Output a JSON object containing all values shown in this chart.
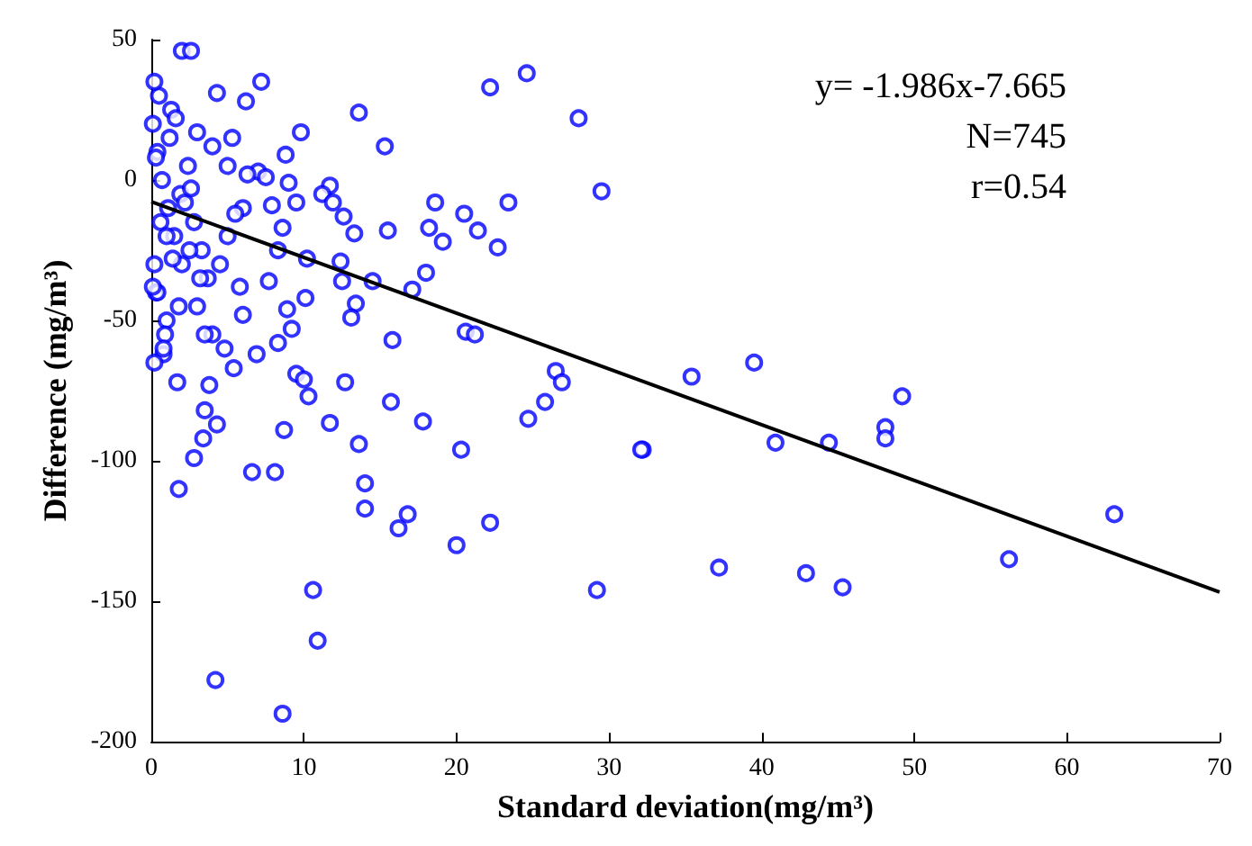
{
  "chart_data": {
    "type": "scatter",
    "xlabel": "Standard deviation(mg/m³)",
    "ylabel": "Difference (mg/m³)",
    "xlim": [
      0,
      70
    ],
    "ylim": [
      -200,
      50
    ],
    "xticks": [
      0,
      10,
      20,
      30,
      40,
      50,
      60,
      70
    ],
    "yticks": [
      -200,
      -150,
      -100,
      -50,
      0,
      50
    ],
    "grid": false,
    "marker": "circle",
    "annotations": [
      "y= -1.986x-7.665",
      "N=745",
      "r=0.54"
    ],
    "series": [
      {
        "color": "#0000ff",
        "x": [
          35.4,
          39.5,
          32.2,
          40.9,
          44.4,
          48.1,
          48.1,
          49.2,
          37.2,
          42.9,
          45.3,
          56.2,
          63.1,
          13.6,
          15.3,
          22.2,
          24.6,
          28.0,
          29.5,
          12.6,
          13.3,
          15.5,
          18.6,
          18.2,
          19.1,
          20.5,
          21.4,
          23.4,
          22.7,
          18.0,
          17.1,
          14.5,
          12.5,
          13.4,
          13.1,
          15.8,
          20.6,
          21.2,
          26.5,
          26.9,
          25.8,
          24.7,
          12.7,
          15.7,
          17.8,
          13.6,
          20.3,
          32.1,
          14.0,
          14.0,
          16.8,
          16.2,
          22.2,
          20.0,
          29.2,
          3.5,
          4.3,
          3.4,
          2.8,
          1.8,
          8.7,
          6.6,
          8.1,
          11.7,
          10.6,
          10.9,
          4.2,
          8.6,
          10.3,
          2.0,
          2.6,
          7.2,
          4.3,
          6.2,
          9.8,
          5.3,
          8.8,
          11.7,
          11.2,
          11.9,
          9.0,
          9.5,
          7.9,
          7.0,
          7.5,
          8.6,
          8.3,
          10.2,
          12.4,
          7.7,
          5.8,
          10.1,
          8.9,
          9.2,
          8.3,
          6.9,
          5.4,
          0.8,
          0.2,
          1.7,
          3.8,
          9.5,
          10.0,
          0.5,
          0.2,
          1.3,
          3.0,
          4.0,
          5.0,
          6.0,
          0.3,
          1.0,
          2.0,
          3.0,
          4.0,
          6.0,
          5.0,
          0.1,
          0.4,
          0.7,
          1.1,
          1.5,
          1.9,
          2.4,
          2.8,
          3.3,
          3.7,
          4.5,
          5.5,
          6.3,
          0.2,
          0.6,
          1.2,
          1.8,
          2.5,
          3.2,
          0.3,
          0.9,
          1.6,
          2.2,
          0.4,
          1.0,
          2.6,
          3.5,
          4.8,
          0.1,
          0.8,
          1.4
        ],
        "values": [
          -70,
          -65,
          -96,
          -93.5,
          -93.5,
          -88,
          -92,
          -77,
          -138,
          -140,
          -145,
          -135,
          -119,
          24,
          12,
          33,
          38,
          22,
          -4,
          -13,
          -19,
          -18,
          -8,
          -17,
          -22,
          -12,
          -18,
          -8,
          -24,
          -33,
          -39,
          -36,
          -36,
          -44,
          -49,
          -57,
          -54,
          -55,
          -68,
          -72,
          -79,
          -85,
          -72,
          -79,
          -86,
          -94,
          -96,
          -96,
          -108,
          -117,
          -119,
          -124,
          -122,
          -130,
          -146,
          -82,
          -87,
          -92,
          -99,
          -110,
          -89,
          -104,
          -104,
          -86.5,
          -146,
          -164,
          -178,
          -190,
          -77,
          46,
          46,
          35,
          31,
          28,
          17,
          15,
          9,
          -2,
          -5,
          -8,
          -1,
          -8,
          -9,
          3,
          1,
          -17,
          -25,
          -28,
          -29,
          -36,
          -38,
          -42,
          -46,
          -53,
          -58,
          -62,
          -67,
          -62,
          -65,
          -72,
          -73,
          -69,
          -71,
          30,
          35,
          25,
          17,
          12,
          5,
          -10,
          -40,
          -50,
          -30,
          -45,
          -55,
          -48,
          -20,
          20,
          10,
          0,
          -10,
          -20,
          -5,
          5,
          -15,
          -25,
          -35,
          -30,
          -12,
          2,
          -30,
          -15,
          15,
          -45,
          -25,
          -35,
          8,
          -55,
          22,
          -8,
          -40,
          -20,
          -3,
          -55,
          -60,
          -38,
          -60,
          -28
        ]
      },
      {
        "type": "line",
        "color": "#000000",
        "marker": "none",
        "x": [
          0,
          70
        ],
        "values": [
          -7.7,
          -146.7
        ]
      }
    ]
  }
}
